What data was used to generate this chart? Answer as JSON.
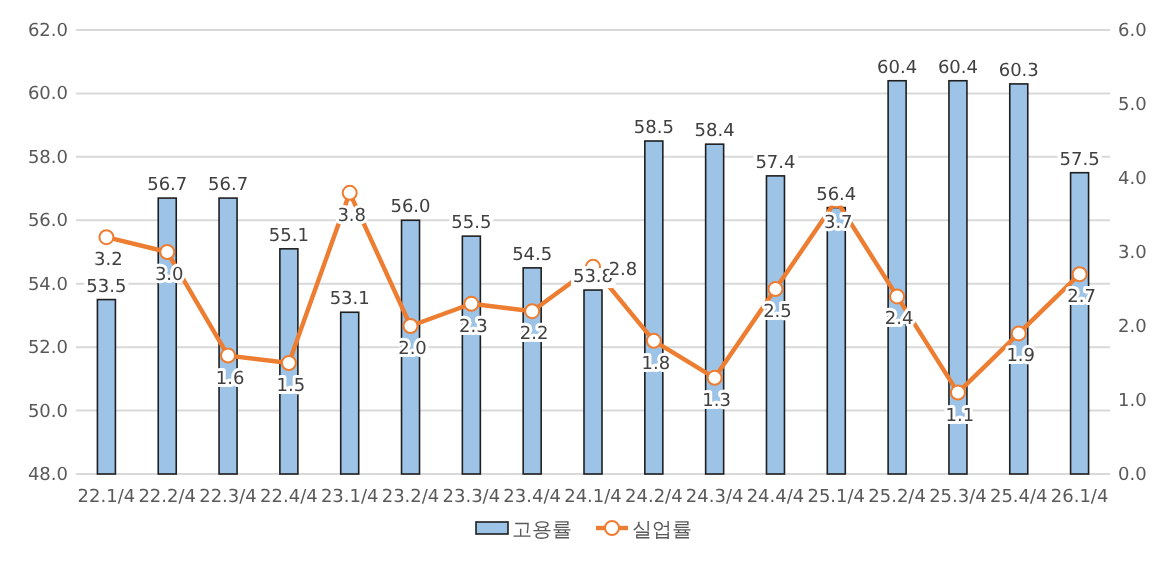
{
  "chart_data": {
    "type": "bar",
    "categories": [
      "22.1/4",
      "22.2/4",
      "22.3/4",
      "22.4/4",
      "23.1/4",
      "23.2/4",
      "23.3/4",
      "23.4/4",
      "24.1/4",
      "24.2/4",
      "24.3/4",
      "24.4/4",
      "25.1/4",
      "25.2/4",
      "25.3/4",
      "25.4/4",
      "26.1/4"
    ],
    "series": [
      {
        "name": "고용률",
        "color": "#9dc3e6",
        "values": [
          53.5,
          56.7,
          56.7,
          55.1,
          53.1,
          56.0,
          55.5,
          54.5,
          53.8,
          58.5,
          58.4,
          57.4,
          56.4,
          60.4,
          60.4,
          60.3,
          57.5
        ],
        "value_labels": [
          "53.5",
          "56.7",
          "56.7",
          "55.1",
          "53.1",
          "56.0",
          "55.5",
          "54.5",
          "53.8",
          "58.5",
          "58.4",
          "57.4",
          "56.4",
          "60.4",
          "60.4",
          "60.3",
          "57.5"
        ]
      },
      {
        "name": "실업률",
        "type": "line",
        "axis": "y2",
        "color": "#ed7d31",
        "marker": "circle",
        "values": [
          3.2,
          3.0,
          1.6,
          1.5,
          3.8,
          2.0,
          2.3,
          2.2,
          2.8,
          1.8,
          1.3,
          2.5,
          3.7,
          2.4,
          1.1,
          1.9,
          2.7
        ],
        "value_labels": [
          "3.2",
          "3.0",
          "1.6",
          "1.5",
          "3.8",
          "2.0",
          "2.3",
          "2.2",
          "2.8",
          "1.8",
          "1.3",
          "2.5",
          "3.7",
          "2.4",
          "1.1",
          "1.9",
          "2.7"
        ]
      }
    ],
    "ylim": [
      48,
      62
    ],
    "yticks": [
      {
        "value": 48,
        "label": "48.0"
      },
      {
        "value": 50,
        "label": "50.0"
      },
      {
        "value": 52,
        "label": "52.0"
      },
      {
        "value": 54,
        "label": "54.0"
      },
      {
        "value": 56,
        "label": "56.0"
      },
      {
        "value": 58,
        "label": "58.0"
      },
      {
        "value": 60,
        "label": "60.0"
      },
      {
        "value": 62,
        "label": "62.0"
      }
    ],
    "y2lim": [
      0,
      6
    ],
    "y2ticks": [
      {
        "value": 0,
        "label": "0.0"
      },
      {
        "value": 1,
        "label": "1.0"
      },
      {
        "value": 2,
        "label": "2.0"
      },
      {
        "value": 3,
        "label": "3.0"
      },
      {
        "value": 4,
        "label": "4.0"
      },
      {
        "value": 5,
        "label": "5.0"
      },
      {
        "value": 6,
        "label": "6.0"
      }
    ],
    "grid": "y",
    "legend": "bottom"
  }
}
